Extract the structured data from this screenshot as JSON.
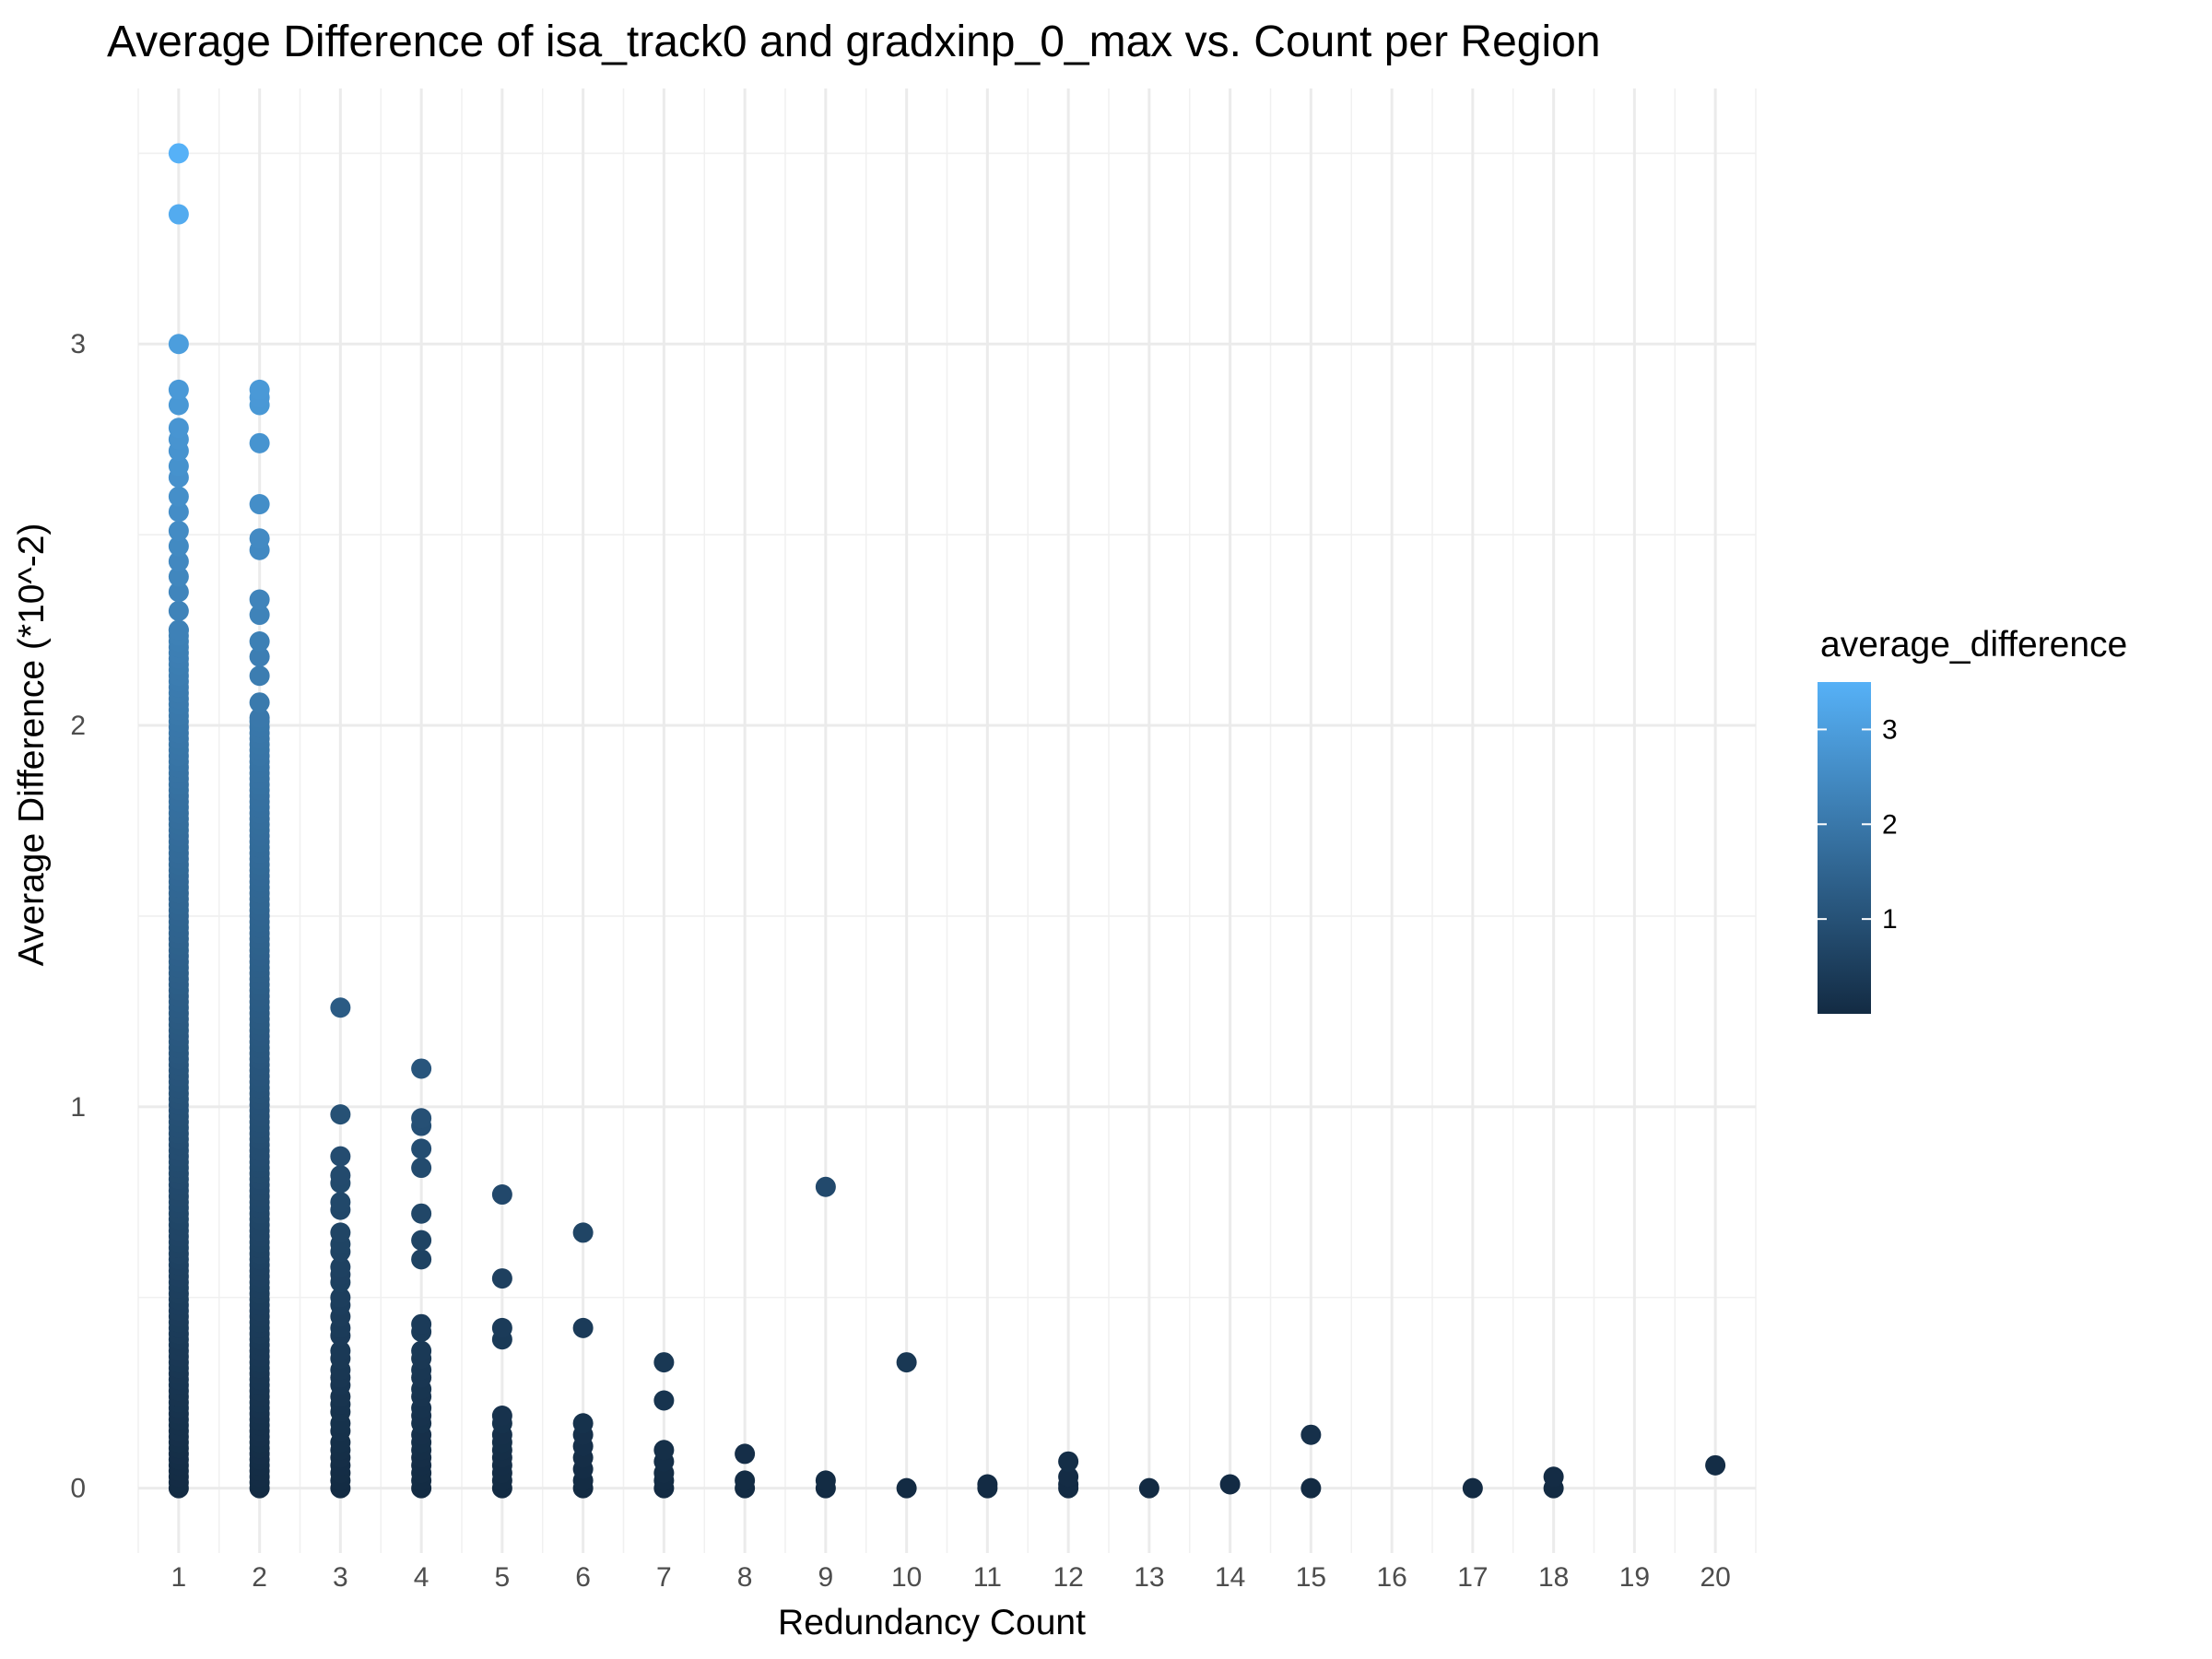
{
  "chart_data": {
    "type": "scatter",
    "title": "Average Difference of isa_track0 and gradxinp_0_max vs. Count per Region",
    "xlabel": "Redundancy Count",
    "ylabel": "Average Difference (*10^-2)",
    "xlim": [
      0.5,
      20.5
    ],
    "ylim": [
      -0.17,
      3.67
    ],
    "x_ticks": [
      1,
      2,
      3,
      4,
      5,
      6,
      7,
      8,
      9,
      10,
      11,
      12,
      13,
      14,
      15,
      16,
      17,
      18,
      19,
      20
    ],
    "y_ticks": [
      0,
      1,
      2,
      3
    ],
    "grid": true,
    "legend": {
      "title": "average_difference",
      "placement": "right",
      "ticks": [
        1,
        2,
        3
      ],
      "range": [
        0,
        3.5
      ],
      "color_low": "#132B43",
      "color_high": "#56B1F7"
    },
    "points": [
      {
        "x": 1,
        "y": 3.5
      },
      {
        "x": 1,
        "y": 3.34
      },
      {
        "x": 1,
        "y": 3.0
      },
      {
        "x": 1,
        "y": 2.88
      },
      {
        "x": 1,
        "y": 2.84
      },
      {
        "x": 1,
        "y": 2.78
      },
      {
        "x": 1,
        "y": 2.75
      },
      {
        "x": 1,
        "y": 2.72
      },
      {
        "x": 1,
        "y": 2.68
      },
      {
        "x": 1,
        "y": 2.65
      },
      {
        "x": 1,
        "y": 2.6
      },
      {
        "x": 1,
        "y": 2.56
      },
      {
        "x": 1,
        "y": 2.51
      },
      {
        "x": 1,
        "y": 2.47
      },
      {
        "x": 1,
        "y": 2.43
      },
      {
        "x": 1,
        "y": 2.39
      },
      {
        "x": 1,
        "y": 2.35
      },
      {
        "x": 1,
        "y": 2.3
      },
      {
        "x": 1,
        "y": 2.25
      },
      {
        "x": 2,
        "y": 2.88
      },
      {
        "x": 2,
        "y": 2.86
      },
      {
        "x": 2,
        "y": 2.84
      },
      {
        "x": 2,
        "y": 2.74
      },
      {
        "x": 2,
        "y": 2.58
      },
      {
        "x": 2,
        "y": 2.49
      },
      {
        "x": 2,
        "y": 2.46
      },
      {
        "x": 2,
        "y": 2.33
      },
      {
        "x": 2,
        "y": 2.29
      },
      {
        "x": 2,
        "y": 2.22
      },
      {
        "x": 2,
        "y": 2.18
      },
      {
        "x": 2,
        "y": 2.13
      },
      {
        "x": 2,
        "y": 2.06
      },
      {
        "x": 2,
        "y": 2.02
      },
      {
        "x": 3,
        "y": 1.26
      },
      {
        "x": 3,
        "y": 0.98
      },
      {
        "x": 3,
        "y": 0.87
      },
      {
        "x": 3,
        "y": 0.82
      },
      {
        "x": 3,
        "y": 0.8
      },
      {
        "x": 3,
        "y": 0.75
      },
      {
        "x": 3,
        "y": 0.73
      },
      {
        "x": 3,
        "y": 0.67
      },
      {
        "x": 3,
        "y": 0.64
      },
      {
        "x": 3,
        "y": 0.62
      },
      {
        "x": 3,
        "y": 0.58
      },
      {
        "x": 3,
        "y": 0.56
      },
      {
        "x": 3,
        "y": 0.54
      },
      {
        "x": 3,
        "y": 0.5
      },
      {
        "x": 3,
        "y": 0.48
      },
      {
        "x": 3,
        "y": 0.45
      },
      {
        "x": 3,
        "y": 0.42
      },
      {
        "x": 3,
        "y": 0.4
      },
      {
        "x": 3,
        "y": 0.36
      },
      {
        "x": 3,
        "y": 0.34
      },
      {
        "x": 3,
        "y": 0.31
      },
      {
        "x": 3,
        "y": 0.29
      },
      {
        "x": 3,
        "y": 0.27
      },
      {
        "x": 3,
        "y": 0.24
      },
      {
        "x": 3,
        "y": 0.22
      },
      {
        "x": 3,
        "y": 0.2
      },
      {
        "x": 3,
        "y": 0.17
      },
      {
        "x": 3,
        "y": 0.15
      },
      {
        "x": 3,
        "y": 0.12
      },
      {
        "x": 3,
        "y": 0.1
      },
      {
        "x": 3,
        "y": 0.08
      },
      {
        "x": 3,
        "y": 0.06
      },
      {
        "x": 3,
        "y": 0.04
      },
      {
        "x": 3,
        "y": 0.02
      },
      {
        "x": 3,
        "y": 0.0
      },
      {
        "x": 4,
        "y": 1.1
      },
      {
        "x": 4,
        "y": 0.97
      },
      {
        "x": 4,
        "y": 0.95
      },
      {
        "x": 4,
        "y": 0.89
      },
      {
        "x": 4,
        "y": 0.84
      },
      {
        "x": 4,
        "y": 0.72
      },
      {
        "x": 4,
        "y": 0.65
      },
      {
        "x": 4,
        "y": 0.6
      },
      {
        "x": 4,
        "y": 0.43
      },
      {
        "x": 4,
        "y": 0.41
      },
      {
        "x": 4,
        "y": 0.36
      },
      {
        "x": 4,
        "y": 0.34
      },
      {
        "x": 4,
        "y": 0.31
      },
      {
        "x": 4,
        "y": 0.29
      },
      {
        "x": 4,
        "y": 0.26
      },
      {
        "x": 4,
        "y": 0.24
      },
      {
        "x": 4,
        "y": 0.21
      },
      {
        "x": 4,
        "y": 0.19
      },
      {
        "x": 4,
        "y": 0.17
      },
      {
        "x": 4,
        "y": 0.14
      },
      {
        "x": 4,
        "y": 0.12
      },
      {
        "x": 4,
        "y": 0.1
      },
      {
        "x": 4,
        "y": 0.08
      },
      {
        "x": 4,
        "y": 0.06
      },
      {
        "x": 4,
        "y": 0.04
      },
      {
        "x": 4,
        "y": 0.02
      },
      {
        "x": 4,
        "y": 0.0
      },
      {
        "x": 5,
        "y": 0.77
      },
      {
        "x": 5,
        "y": 0.55
      },
      {
        "x": 5,
        "y": 0.42
      },
      {
        "x": 5,
        "y": 0.39
      },
      {
        "x": 5,
        "y": 0.19
      },
      {
        "x": 5,
        "y": 0.17
      },
      {
        "x": 5,
        "y": 0.14
      },
      {
        "x": 5,
        "y": 0.12
      },
      {
        "x": 5,
        "y": 0.1
      },
      {
        "x": 5,
        "y": 0.08
      },
      {
        "x": 5,
        "y": 0.06
      },
      {
        "x": 5,
        "y": 0.04
      },
      {
        "x": 5,
        "y": 0.02
      },
      {
        "x": 5,
        "y": 0.0
      },
      {
        "x": 6,
        "y": 0.67
      },
      {
        "x": 6,
        "y": 0.42
      },
      {
        "x": 6,
        "y": 0.17
      },
      {
        "x": 6,
        "y": 0.14
      },
      {
        "x": 6,
        "y": 0.11
      },
      {
        "x": 6,
        "y": 0.08
      },
      {
        "x": 6,
        "y": 0.05
      },
      {
        "x": 6,
        "y": 0.02
      },
      {
        "x": 6,
        "y": 0.0
      },
      {
        "x": 7,
        "y": 0.33
      },
      {
        "x": 7,
        "y": 0.23
      },
      {
        "x": 7,
        "y": 0.1
      },
      {
        "x": 7,
        "y": 0.07
      },
      {
        "x": 7,
        "y": 0.04
      },
      {
        "x": 7,
        "y": 0.02
      },
      {
        "x": 7,
        "y": 0.0
      },
      {
        "x": 8,
        "y": 0.09
      },
      {
        "x": 8,
        "y": 0.02
      },
      {
        "x": 8,
        "y": 0.0
      },
      {
        "x": 9,
        "y": 0.79
      },
      {
        "x": 9,
        "y": 0.02
      },
      {
        "x": 9,
        "y": 0.0
      },
      {
        "x": 10,
        "y": 0.33
      },
      {
        "x": 10,
        "y": 0.0
      },
      {
        "x": 11,
        "y": 0.01
      },
      {
        "x": 11,
        "y": 0.0
      },
      {
        "x": 12,
        "y": 0.07
      },
      {
        "x": 12,
        "y": 0.03
      },
      {
        "x": 12,
        "y": 0.01
      },
      {
        "x": 12,
        "y": 0.0
      },
      {
        "x": 13,
        "y": 0.0
      },
      {
        "x": 14,
        "y": 0.01
      },
      {
        "x": 15,
        "y": 0.14
      },
      {
        "x": 15,
        "y": 0.0
      },
      {
        "x": 17,
        "y": 0.0
      },
      {
        "x": 18,
        "y": 0.03
      },
      {
        "x": 18,
        "y": 0.0
      },
      {
        "x": 20,
        "y": 0.06
      }
    ],
    "dense_columns": [
      {
        "x": 1,
        "from": 0,
        "to": 2.25
      },
      {
        "x": 2,
        "from": 0,
        "to": 2.02
      }
    ]
  }
}
